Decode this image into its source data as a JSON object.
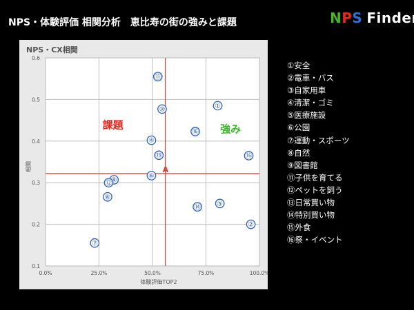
{
  "header": {
    "title": "NPS・体験評価 相関分析　恵比寿の街の強みと課題",
    "logo": {
      "part_n": "N",
      "part_p": "P",
      "part_s": "S",
      "word": "Finder"
    }
  },
  "colors": {
    "background": "#000000",
    "panel": "#e9e9e9",
    "plot_bg": "#ffffff",
    "marker": "#2a5fb8",
    "reference_line": "#e33a2c",
    "quadrant_issue": "#e8261c",
    "quadrant_strength": "#3bb82b",
    "logo_n": "#46b528",
    "logo_p": "#e8261c",
    "logo_s": "#2f6fd6"
  },
  "chart_data": {
    "type": "scatter",
    "title": "NPS・CX相関",
    "xlabel": "体験評価TOP2",
    "ylabel": "相関",
    "xlim": [
      0,
      100
    ],
    "ylim": [
      0.1,
      0.6
    ],
    "x_ticks": [
      {
        "value": 0,
        "label": "0.0%"
      },
      {
        "value": 25,
        "label": "25.0%"
      },
      {
        "value": 50,
        "label": "50.0%"
      },
      {
        "value": 75,
        "label": "75.0%"
      },
      {
        "value": 100,
        "label": "100.0%"
      }
    ],
    "y_ticks": [
      {
        "value": 0.1,
        "label": "0.1"
      },
      {
        "value": 0.2,
        "label": "0.2"
      },
      {
        "value": 0.3,
        "label": "0.3"
      },
      {
        "value": 0.4,
        "label": "0.4"
      },
      {
        "value": 0.5,
        "label": "0.5"
      },
      {
        "value": 0.6,
        "label": "0.6"
      }
    ],
    "grid": true,
    "reference": {
      "label": "A",
      "x": 56,
      "y": 0.322
    },
    "quadrant_labels": [
      {
        "text": "課題",
        "x": 31.5,
        "y": 0.43,
        "color": "#e8261c"
      },
      {
        "text": "強み",
        "x": 86.5,
        "y": 0.42,
        "color": "#3bb82b"
      }
    ],
    "points": [
      {
        "label": "①",
        "x": 80.5,
        "y": 0.485
      },
      {
        "label": "②",
        "x": 96.0,
        "y": 0.2
      },
      {
        "label": "④",
        "x": 49.5,
        "y": 0.402
      },
      {
        "label": "⑤",
        "x": 81.5,
        "y": 0.25
      },
      {
        "label": "⑥",
        "x": 49.5,
        "y": 0.317
      },
      {
        "label": "⑦",
        "x": 23.0,
        "y": 0.155
      },
      {
        "label": "⑧",
        "x": 29.0,
        "y": 0.266
      },
      {
        "label": "⑨",
        "x": 32.0,
        "y": 0.307
      },
      {
        "label": "⑪",
        "x": 52.5,
        "y": 0.555
      },
      {
        "label": "⑫",
        "x": 29.5,
        "y": 0.3
      },
      {
        "label": "⑬",
        "x": 53.0,
        "y": 0.366
      },
      {
        "label": "⑭",
        "x": 71.0,
        "y": 0.242
      },
      {
        "label": "⑮",
        "x": 95.0,
        "y": 0.365
      },
      {
        "label": "⑯",
        "x": 70.0,
        "y": 0.423
      },
      {
        "label": "⑩",
        "x": 54.5,
        "y": 0.477
      }
    ]
  },
  "legend": [
    "①安全",
    "②電車・バス",
    "③自家用車",
    "④清潔・ゴミ",
    "⑤医療施設",
    "⑥公園",
    "⑦運動・スポーツ",
    "⑧自然",
    "⑨図書館",
    "⑪子供を育てる",
    "⑫ペットを飼う",
    "⑬日常買い物",
    "⑭特別買い物",
    "⑮外食",
    "⑯祭・イベント"
  ]
}
